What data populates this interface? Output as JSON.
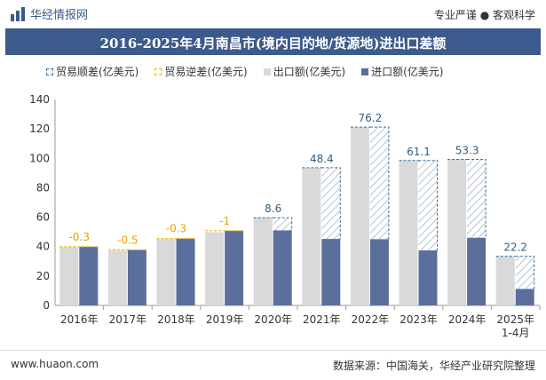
{
  "header": {
    "brand": "华经情报网",
    "slogan": "专业严谨 ● 客观科学"
  },
  "chart_data": {
    "type": "bar",
    "title": "2016-2025年4月南昌市(境内目的地/货源地)进出口差额",
    "categories": [
      "2016年",
      "2017年",
      "2018年",
      "2019年",
      "2020年",
      "2021年",
      "2022年",
      "2023年",
      "2024年",
      "2025年\n1-4月"
    ],
    "series": [
      {
        "name": "贸易顺差(亿美元)",
        "values": [
          null,
          null,
          null,
          null,
          8.6,
          48.4,
          76.2,
          61.1,
          53.3,
          22.2
        ]
      },
      {
        "name": "贸易逆差(亿美元)",
        "values": [
          -0.3,
          -0.5,
          -0.3,
          -1,
          null,
          null,
          null,
          null,
          null,
          null
        ]
      },
      {
        "name": "出口额(亿美元)",
        "values": [
          39.6,
          37.3,
          45.2,
          49.8,
          59.6,
          93.6,
          121.2,
          98.5,
          99.3,
          33.4
        ]
      },
      {
        "name": "进口额(亿美元)",
        "values": [
          39.9,
          37.8,
          45.5,
          50.8,
          51.0,
          45.2,
          45.0,
          37.4,
          46.0,
          11.2
        ]
      }
    ],
    "data_labels": [
      "-0.3",
      "-0.5",
      "-0.3",
      "-1",
      "8.6",
      "48.4",
      "76.2",
      "61.1",
      "53.3",
      "22.2"
    ],
    "ylim": [
      0,
      140
    ],
    "yticks": [
      0,
      20,
      40,
      60,
      80,
      100,
      120,
      140
    ],
    "legend_position": "top",
    "colors": {
      "export": "#d9d9d9",
      "import": "#5b6f9c",
      "surplus": "#3a6f99",
      "deficit": "#f3b81a",
      "surplus_label": "#2f5f85",
      "deficit_label": "#e5a400"
    }
  },
  "footer": {
    "site": "www.huaon.com",
    "source": "数据来源：中国海关，华经产业研究院整理"
  }
}
